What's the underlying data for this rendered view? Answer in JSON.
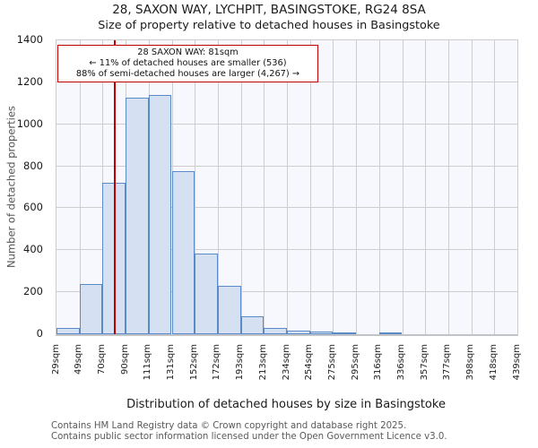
{
  "chart_data": {
    "type": "bar",
    "title": "28, SAXON WAY, LYCHPIT, BASINGSTOKE, RG24 8SA",
    "subtitle": "Size of property relative to detached houses in Basingstoke",
    "xlabel": "Distribution of detached houses by size in Basingstoke",
    "ylabel": "Number of detached properties",
    "ylim": [
      0,
      1400
    ],
    "ytick_step": 200,
    "yticks": [
      "0",
      "200",
      "400",
      "600",
      "800",
      "1000",
      "1200",
      "1400"
    ],
    "x_tick_labels": [
      "29sqm",
      "49sqm",
      "70sqm",
      "90sqm",
      "111sqm",
      "131sqm",
      "152sqm",
      "172sqm",
      "193sqm",
      "213sqm",
      "234sqm",
      "254sqm",
      "275sqm",
      "295sqm",
      "316sqm",
      "336sqm",
      "357sqm",
      "377sqm",
      "398sqm",
      "418sqm",
      "439sqm"
    ],
    "bin_edges_sqm": [
      29,
      49,
      70,
      90,
      111,
      131,
      152,
      172,
      193,
      213,
      234,
      254,
      275,
      295,
      316,
      336,
      357,
      377,
      398,
      418,
      439
    ],
    "values": [
      30,
      240,
      720,
      1125,
      1140,
      775,
      385,
      230,
      85,
      28,
      16,
      11,
      7,
      0,
      4,
      0,
      0,
      0,
      0,
      0
    ],
    "grid": true,
    "legend": "none",
    "marker_line": {
      "x_sqm": 81
    },
    "annotation": {
      "line1": "28 SAXON WAY: 81sqm",
      "line2": "← 11% of detached houses are smaller (536)",
      "line3": "88% of semi-detached houses are larger (4,267) →"
    }
  },
  "colors": {
    "bar_fill": "#d5e0f2",
    "bar_edge": "#5b8bc7",
    "grid": "#cdcdcd",
    "plot_bg": "#f6f8fd",
    "marker": "#c00000",
    "annotation_border": "#c00000",
    "footer_text": "#595959"
  },
  "footer": {
    "line1": "Contains HM Land Registry data © Crown copyright and database right 2025.",
    "line2": "Contains public sector information licensed under the Open Government Licence v3.0."
  }
}
